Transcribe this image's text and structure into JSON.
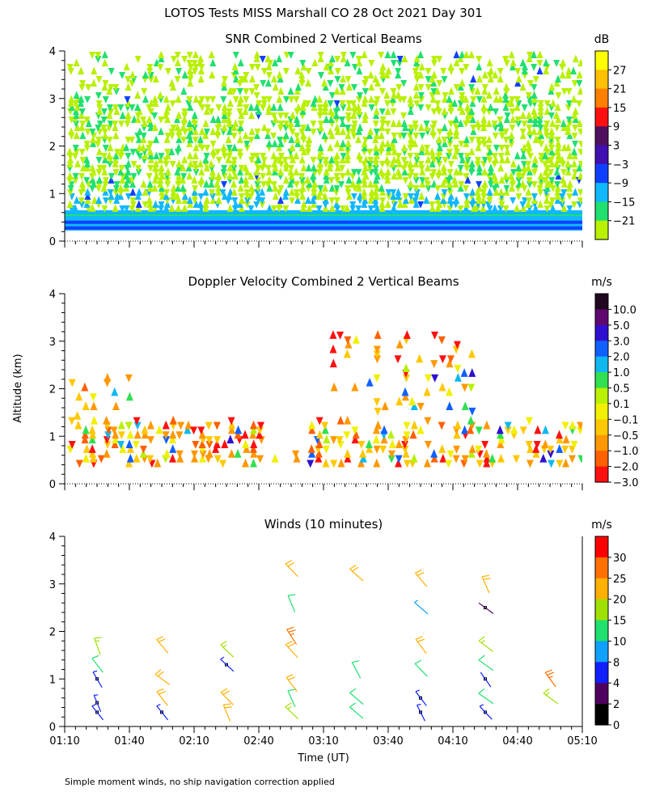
{
  "page": {
    "title": "LOTOS Tests MISS Marshall CO  28 Oct 2021 Day 301",
    "footnote": "Simple moment winds, no ship navigation correction applied"
  },
  "chart_data": [
    {
      "id": "snr",
      "type": "heatmap",
      "title": "SNR Combined 2 Vertical Beams",
      "ylabel": "",
      "ylim": [
        0,
        4
      ],
      "yticks": [
        0,
        1,
        2,
        3,
        4
      ],
      "colorbar": {
        "unit": "dB",
        "labels": [
          "27",
          "21",
          "15",
          "9",
          "3",
          "−3",
          "−9",
          "−15",
          "−21"
        ],
        "colors": [
          "#ffff00",
          "#ffc000",
          "#ff7f00",
          "#ff1010",
          "#501060",
          "#4010b0",
          "#1040ff",
          "#10b8ff",
          "#20e070",
          "#b8f000"
        ]
      }
    },
    {
      "id": "doppler",
      "type": "heatmap",
      "title": "Doppler Velocity Combined 2 Vertical Beams",
      "ylabel": "Altitude (km)",
      "ylim": [
        0,
        4
      ],
      "yticks": [
        0,
        1,
        2,
        3,
        4
      ],
      "colorbar": {
        "unit": "m/s",
        "labels": [
          "10.0",
          "5.0",
          "3.0",
          "2.0",
          "1.0",
          "0.5",
          "0.1",
          "−0.1",
          "−0.5",
          "−1.0",
          "−2.0",
          "−3.0"
        ],
        "colors": [
          "#200820",
          "#600870",
          "#3010d0",
          "#1060ff",
          "#10b8f0",
          "#30e050",
          "#b8f000",
          "#f0f000",
          "#ffc800",
          "#ff9800",
          "#ff6000",
          "#ff1010"
        ]
      }
    },
    {
      "id": "winds",
      "type": "scatter",
      "title": "Winds (10 minutes)",
      "xlabel": "Time (UT)",
      "ylim": [
        0,
        4
      ],
      "yticks": [
        0,
        1,
        2,
        3,
        4
      ],
      "xlim": [
        "01:10",
        "05:10"
      ],
      "xticks": [
        "01:10",
        "01:40",
        "02:10",
        "02:40",
        "03:10",
        "03:40",
        "04:10",
        "04:40",
        "05:10"
      ],
      "colorbar": {
        "unit": "m/s",
        "labels": [
          "30",
          "25",
          "20",
          "15",
          "10",
          "8",
          "4",
          "2",
          "0"
        ],
        "colors": [
          "#ff0000",
          "#ff7000",
          "#ffb000",
          "#a0e000",
          "#20e070",
          "#10a0ff",
          "#1020ff",
          "#500060",
          "#000000"
        ]
      },
      "barbs": [
        {
          "t": "01:25",
          "alt": 0.3,
          "speed": 5
        },
        {
          "t": "01:25",
          "alt": 0.5,
          "speed": 5
        },
        {
          "t": "01:25",
          "alt": 1.0,
          "speed": 5
        },
        {
          "t": "01:25",
          "alt": 1.3,
          "speed": 12
        },
        {
          "t": "01:25",
          "alt": 1.7,
          "speed": 17
        },
        {
          "t": "01:55",
          "alt": 0.3,
          "speed": 5
        },
        {
          "t": "01:55",
          "alt": 0.6,
          "speed": 24
        },
        {
          "t": "01:55",
          "alt": 1.0,
          "speed": 22
        },
        {
          "t": "01:55",
          "alt": 1.7,
          "speed": 22
        },
        {
          "t": "02:25",
          "alt": 0.3,
          "speed": 24
        },
        {
          "t": "02:25",
          "alt": 0.6,
          "speed": 24
        },
        {
          "t": "02:25",
          "alt": 1.3,
          "speed": 5
        },
        {
          "t": "02:25",
          "alt": 1.6,
          "speed": 17
        },
        {
          "t": "02:55",
          "alt": 0.3,
          "speed": 17
        },
        {
          "t": "02:55",
          "alt": 0.6,
          "speed": 12
        },
        {
          "t": "02:55",
          "alt": 0.9,
          "speed": 20
        },
        {
          "t": "02:55",
          "alt": 1.6,
          "speed": 22
        },
        {
          "t": "02:55",
          "alt": 1.9,
          "speed": 25
        },
        {
          "t": "02:55",
          "alt": 2.6,
          "speed": 12
        },
        {
          "t": "02:55",
          "alt": 3.3,
          "speed": 22
        },
        {
          "t": "03:25",
          "alt": 0.3,
          "speed": 12
        },
        {
          "t": "03:25",
          "alt": 0.6,
          "speed": 12
        },
        {
          "t": "03:25",
          "alt": 1.2,
          "speed": 10
        },
        {
          "t": "03:25",
          "alt": 3.2,
          "speed": 22
        },
        {
          "t": "03:55",
          "alt": 0.3,
          "speed": 5
        },
        {
          "t": "03:55",
          "alt": 0.6,
          "speed": 5
        },
        {
          "t": "03:55",
          "alt": 1.2,
          "speed": 12
        },
        {
          "t": "03:55",
          "alt": 1.7,
          "speed": 22
        },
        {
          "t": "03:55",
          "alt": 2.5,
          "speed": 8
        },
        {
          "t": "03:55",
          "alt": 3.1,
          "speed": 22
        },
        {
          "t": "04:25",
          "alt": 0.3,
          "speed": 5
        },
        {
          "t": "04:25",
          "alt": 0.6,
          "speed": 12
        },
        {
          "t": "04:25",
          "alt": 1.0,
          "speed": 4
        },
        {
          "t": "04:25",
          "alt": 1.3,
          "speed": 12
        },
        {
          "t": "04:25",
          "alt": 1.7,
          "speed": 15
        },
        {
          "t": "04:25",
          "alt": 2.5,
          "speed": 3
        },
        {
          "t": "04:25",
          "alt": 3.0,
          "speed": 22
        },
        {
          "t": "04:55",
          "alt": 0.6,
          "speed": 17
        },
        {
          "t": "04:55",
          "alt": 1.0,
          "speed": 25
        }
      ]
    }
  ]
}
